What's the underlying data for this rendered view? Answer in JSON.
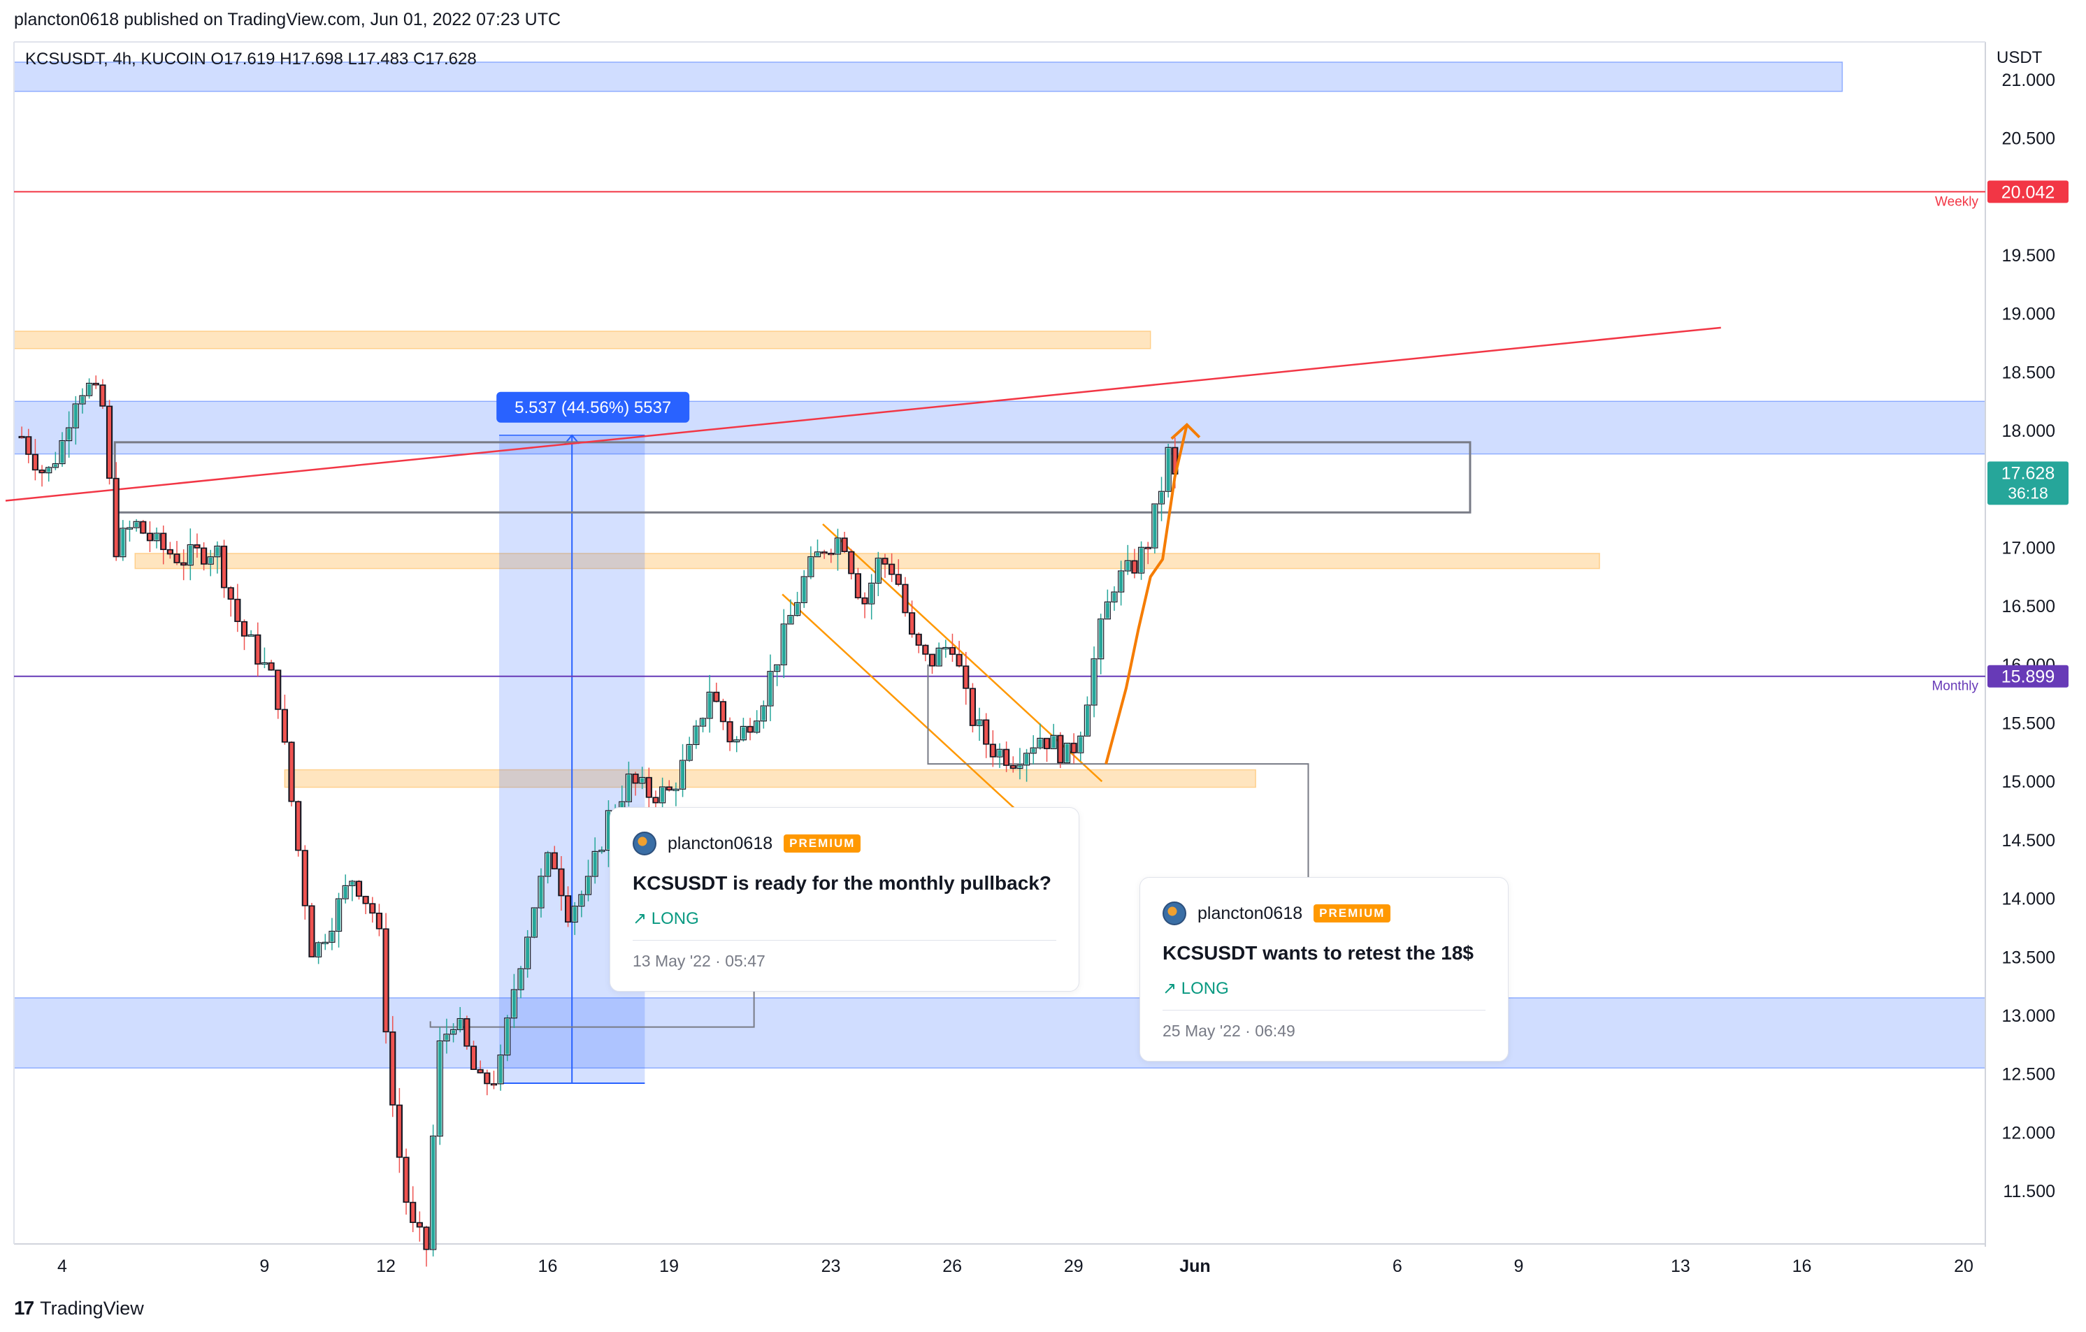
{
  "header": "plancton0618 published on TradingView.com, Jun 01, 2022 07:23 UTC",
  "symbol_line": "KCSUSDT, 4h, KUCOIN  O17.619  H17.698  L17.483  C17.628",
  "currency": "USDT",
  "footer": {
    "logo": "17",
    "brand": "TradingView"
  },
  "colors": {
    "up": "#26a69a",
    "down": "#ef5350",
    "wick_up": "#26a69a",
    "wick_down": "#ef5350",
    "blue_zone": "#c9dafc",
    "orange_zone": "#fde0c4",
    "weekly": "#f23645",
    "monthly": "#673ab7",
    "last_price": "#26a69a"
  },
  "chart_data": {
    "type": "candlestick",
    "symbol": "KCSUSDT",
    "timeframe": "4h",
    "exchange": "KUCOIN",
    "ohlc_last": {
      "open": 17.619,
      "high": 17.698,
      "low": 17.483,
      "close": 17.628
    },
    "y_axis": {
      "ticks": [
        "21.000",
        "20.500",
        "19.500",
        "19.000",
        "18.500",
        "18.000",
        "17.000",
        "16.500",
        "16.000",
        "15.500",
        "15.000",
        "14.500",
        "14.000",
        "13.500",
        "13.000",
        "12.500",
        "12.000",
        "11.500"
      ],
      "ylim": [
        11.0,
        21.3
      ]
    },
    "x_axis": {
      "ticks": [
        {
          "label": "4",
          "day": 4
        },
        {
          "label": "9",
          "day": 9
        },
        {
          "label": "12",
          "day": 12
        },
        {
          "label": "16",
          "day": 16
        },
        {
          "label": "19",
          "day": 19
        },
        {
          "label": "23",
          "day": 23
        },
        {
          "label": "26",
          "day": 26
        },
        {
          "label": "29",
          "day": 29
        },
        {
          "label": "Jun",
          "day": 32
        },
        {
          "label": "6",
          "day": 37
        },
        {
          "label": "9",
          "day": 40
        },
        {
          "label": "13",
          "day": 44
        },
        {
          "label": "16",
          "day": 47
        },
        {
          "label": "20",
          "day": 51
        }
      ]
    },
    "price_labels": [
      {
        "value": 20.042,
        "text": "20.042",
        "tag": "Weekly",
        "color": "#f23645"
      },
      {
        "value": 15.899,
        "text": "15.899",
        "tag": "Monthly",
        "color": "#673ab7"
      },
      {
        "value": 17.628,
        "text": "17.628",
        "countdown": "36:18",
        "color": "#26a69a"
      }
    ],
    "measure_label": "5.537 (44.56%) 5537",
    "keypoints": [
      [
        3.0,
        17.95
      ],
      [
        3.6,
        17.6
      ],
      [
        4.0,
        17.9
      ],
      [
        4.3,
        18.3
      ],
      [
        4.6,
        18.4
      ],
      [
        5.0,
        18.2
      ],
      [
        5.3,
        17.0
      ],
      [
        5.8,
        17.2
      ],
      [
        6.4,
        17.0
      ],
      [
        7.0,
        16.9
      ],
      [
        7.8,
        17.0
      ],
      [
        8.4,
        16.3
      ],
      [
        8.8,
        16.1
      ],
      [
        9.3,
        15.8
      ],
      [
        9.6,
        15.0
      ],
      [
        10.2,
        13.5
      ],
      [
        11.2,
        14.2
      ],
      [
        11.8,
        13.8
      ],
      [
        12.2,
        12.1
      ],
      [
        12.6,
        11.2
      ],
      [
        13.0,
        11.0
      ],
      [
        13.3,
        12.7
      ],
      [
        13.7,
        13.0
      ],
      [
        14.3,
        12.4
      ],
      [
        14.8,
        12.5
      ],
      [
        15.2,
        13.3
      ],
      [
        15.7,
        14.0
      ],
      [
        16.1,
        14.4
      ],
      [
        16.5,
        13.9
      ],
      [
        17.0,
        14.1
      ],
      [
        17.5,
        14.7
      ],
      [
        18.0,
        15.0
      ],
      [
        18.5,
        14.9
      ],
      [
        19.0,
        14.9
      ],
      [
        19.6,
        15.3
      ],
      [
        20.0,
        15.8
      ],
      [
        20.6,
        15.3
      ],
      [
        21.3,
        15.7
      ],
      [
        21.8,
        16.2
      ],
      [
        22.3,
        16.7
      ],
      [
        22.8,
        17.0
      ],
      [
        23.3,
        17.1
      ],
      [
        23.8,
        16.5
      ],
      [
        24.2,
        16.9
      ],
      [
        24.6,
        16.8
      ],
      [
        25.0,
        16.2
      ],
      [
        25.4,
        16.0
      ],
      [
        26.0,
        16.2
      ],
      [
        26.4,
        15.6
      ],
      [
        26.9,
        15.3
      ],
      [
        27.5,
        15.2
      ],
      [
        28.2,
        15.4
      ],
      [
        28.9,
        15.2
      ],
      [
        29.2,
        15.5
      ],
      [
        29.6,
        16.2
      ],
      [
        30.0,
        16.7
      ],
      [
        30.4,
        16.8
      ],
      [
        30.8,
        17.0
      ],
      [
        31.1,
        17.4
      ],
      [
        31.4,
        17.9
      ],
      [
        31.6,
        17.63
      ]
    ],
    "zones": [
      {
        "name": "blue-top",
        "y_low": 20.9,
        "y_high": 21.15,
        "x_end_day": 48.0,
        "color": "blue"
      },
      {
        "name": "blue-resistance",
        "y_low": 17.8,
        "y_high": 18.25,
        "x_end_day": 53.0,
        "color": "blue"
      },
      {
        "name": "blue-support",
        "y_low": 12.55,
        "y_high": 13.15,
        "x_end_day": 53.0,
        "color": "blue"
      },
      {
        "name": "orange-upper",
        "y_low": 18.7,
        "y_high": 18.85,
        "x_end_day": 30.9,
        "color": "orange"
      },
      {
        "name": "orange-mid",
        "y_low": 16.82,
        "y_high": 16.95,
        "x_start_day": 5.8,
        "x_end_day": 42.0,
        "color": "orange"
      },
      {
        "name": "orange-lower",
        "y_low": 14.95,
        "y_high": 15.1,
        "x_start_day": 9.5,
        "x_end_day": 33.5,
        "color": "orange"
      }
    ],
    "trendline": {
      "from": [
        2.6,
        17.4
      ],
      "to": [
        45.0,
        18.88
      ]
    },
    "measure": {
      "x_start_day": 14.8,
      "x_end_day": 18.4,
      "y_low": 12.42,
      "y_high": 17.96
    },
    "rect_outline": {
      "x_start_day": 5.3,
      "x_end_day": 38.8,
      "y_low": 17.3,
      "y_high": 17.9
    },
    "channel": {
      "upper": [
        [
          22.8,
          17.2
        ],
        [
          29.7,
          15.0
        ]
      ],
      "lower": [
        [
          21.8,
          16.6
        ],
        [
          28.7,
          14.4
        ]
      ]
    }
  },
  "cards": [
    {
      "author": "plancton0618",
      "badge": "PREMIUM",
      "title": "KCSUSDT is ready for the monthly pullback?",
      "direction": "↗ LONG",
      "date": "13 May '22 · 05:47"
    },
    {
      "author": "plancton0618",
      "badge": "PREMIUM",
      "title": "KCSUSDT wants to retest the 18$",
      "direction": "↗ LONG",
      "date": "25 May '22 · 06:49"
    }
  ]
}
